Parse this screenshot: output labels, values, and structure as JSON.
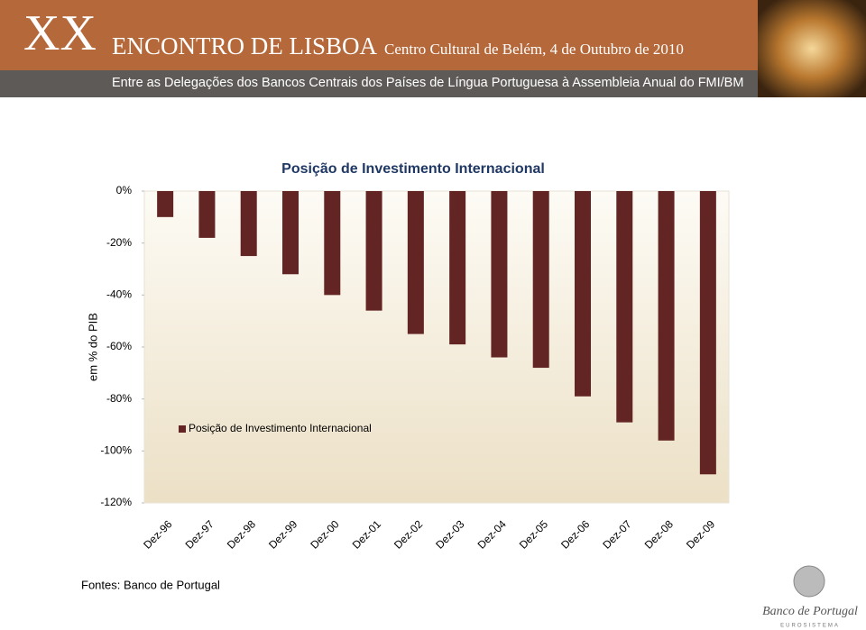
{
  "header": {
    "numeral": "XX",
    "event": "ENCONTRO DE LISBOA",
    "place": "Centro Cultural de Belém, 4 de Outubro de 2010",
    "subtitle": "Entre as Delegações dos Bancos Centrais dos Países de Língua Portuguesa à Assembleia Anual do FMI/BM"
  },
  "chart_data": {
    "type": "bar",
    "title": "Posição de Investimento Internacional",
    "y_label": "em % do PIB",
    "categories": [
      "Dez-96",
      "Dez-97",
      "Dez-98",
      "Dez-99",
      "Dez-00",
      "Dez-01",
      "Dez-02",
      "Dez-03",
      "Dez-04",
      "Dez-05",
      "Dez-06",
      "Dez-07",
      "Dez-08",
      "Dez-09"
    ],
    "series": [
      {
        "name": "Posição de Investimento Internacional",
        "color": "#632523",
        "values": [
          -10,
          -18,
          -25,
          -32,
          -40,
          -46,
          -55,
          -59,
          -64,
          -68,
          -79,
          -89,
          -96,
          -109
        ]
      }
    ],
    "ylim": [
      -120,
      0
    ],
    "yticks": [
      {
        "value": 0,
        "label": "0%"
      },
      {
        "value": -20,
        "label": "-20%"
      },
      {
        "value": -40,
        "label": "-40%"
      },
      {
        "value": -60,
        "label": "-60%"
      },
      {
        "value": -80,
        "label": "-80%"
      },
      {
        "value": -100,
        "label": "-100%"
      },
      {
        "value": -120,
        "label": "-120%"
      }
    ],
    "legend": "inside-bottom-left"
  },
  "footer": {
    "source": "Fontes: Banco de Portugal",
    "bank": "Banco de Portugal",
    "system": "EUROSISTEMA"
  }
}
